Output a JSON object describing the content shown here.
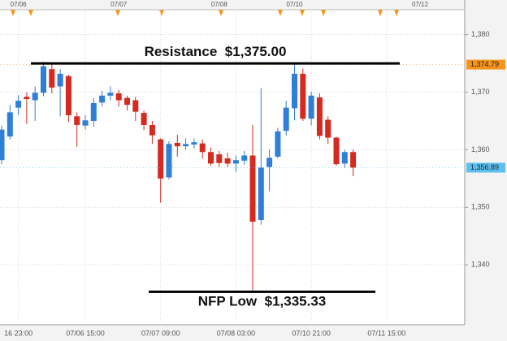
{
  "chart_data": {
    "type": "candlestick",
    "categories": [
      null,
      null,
      "16 23:00",
      null,
      null,
      null,
      null,
      null,
      null,
      null,
      "07/06 15:00",
      null,
      null,
      null,
      null,
      null,
      null,
      null,
      null,
      "07/07 09:00",
      null,
      null,
      null,
      null,
      null,
      null,
      null,
      null,
      "07/08 03:00",
      null,
      null,
      null,
      null,
      null,
      null,
      null,
      null,
      "07/10 21:00",
      null,
      null,
      null,
      null,
      null,
      null,
      null,
      null,
      "07/11 15:00",
      null,
      null,
      null,
      null,
      null,
      null,
      null,
      null,
      null
    ],
    "top_categories": [
      null,
      null,
      "07/06",
      null,
      null,
      null,
      null,
      null,
      null,
      null,
      null,
      null,
      null,
      null,
      "07/07",
      null,
      null,
      null,
      null,
      null,
      null,
      null,
      null,
      null,
      null,
      null,
      "07/08",
      null,
      null,
      null,
      null,
      null,
      null,
      null,
      null,
      "07/10",
      null,
      null,
      null,
      null,
      null,
      null,
      null,
      null,
      null,
      null,
      null,
      null,
      null,
      null,
      "07/12",
      null,
      null,
      null,
      null,
      null
    ],
    "open": [
      1358.2,
      1362.3,
      1367.3,
      1369.2,
      1368.6,
      1369.9,
      1374,
      1371,
      1372.8,
      1365.8,
      1364.2,
      1365,
      1368.2,
      1369.4,
      1369.8,
      1369,
      1368.6,
      1366.4,
      1364.3,
      1361.8,
      1355.2,
      1361.2,
      1360.6,
      1360.9,
      1361.1,
      1359.6,
      1359.2,
      1358.5,
      1357.6,
      1358.1,
      1359,
      1347.8,
      1357,
      1358.8,
      1363.3,
      1367.2,
      1373.2,
      1365.4,
      1369.1,
      1365.2,
      1362.1,
      1357.6,
      1359.6,
      null,
      null,
      null,
      null,
      null,
      null,
      null,
      null,
      null,
      null,
      null,
      null,
      null
    ],
    "high": [
      1364.2,
      1367.8,
      1369.5,
      1370,
      1371,
      1375.3,
      1374.8,
      1374,
      1373,
      1366.5,
      1366,
      1369,
      1370.2,
      1371,
      1370.4,
      1369.4,
      1369.2,
      1366.8,
      1365,
      1362,
      1361.5,
      1362.6,
      1362,
      1362,
      1361.8,
      1360.4,
      1359.8,
      1359.5,
      1359,
      1359.8,
      1364.3,
      1370.7,
      1360,
      1363.8,
      1368.5,
      1375.1,
      1374.1,
      1370.1,
      1369.8,
      1365.8,
      1362.3,
      1360,
      1360,
      null,
      null,
      null,
      null,
      null,
      null,
      null,
      null,
      null,
      null,
      null,
      null,
      null
    ],
    "low": [
      1357.5,
      1361.8,
      1366,
      1364.5,
      1365,
      1369.3,
      1369.8,
      1365.8,
      1364.8,
      1360.5,
      1363.5,
      1364,
      1367.5,
      1368.6,
      1367.5,
      1366.8,
      1365,
      1363.4,
      1361,
      1350.8,
      1354.8,
      1358.8,
      1360,
      1360.2,
      1358.5,
      1357.2,
      1357,
      1357,
      1356.1,
      1357.4,
      1335.33,
      1347,
      1352.8,
      1358.5,
      1362.5,
      1365.1,
      1365,
      1364.2,
      1361.8,
      1361,
      1357.2,
      1356.8,
      1355.4,
      null,
      null,
      null,
      null,
      null,
      null,
      null,
      null,
      null,
      null,
      null,
      null,
      null
    ],
    "close": [
      1363.5,
      1366.5,
      1368.5,
      1368.8,
      1369.9,
      1374.5,
      1370.8,
      1373.2,
      1366,
      1364.3,
      1365.1,
      1368.1,
      1369.4,
      1369.9,
      1368.6,
      1367.8,
      1366.6,
      1364.3,
      1362.5,
      1355,
      1361,
      1360.6,
      1361,
      1361.3,
      1359.6,
      1357.6,
      1357.7,
      1357.6,
      1358.2,
      1359,
      1347.5,
      1356.9,
      1358.6,
      1363.2,
      1367.3,
      1373.2,
      1365.4,
      1369.4,
      1362.4,
      1362.1,
      1357.5,
      1359.6,
      1356.89,
      null,
      null,
      null,
      null,
      null,
      null,
      null,
      null,
      null,
      null,
      null,
      null,
      null
    ],
    "up_color": "#2f7ed8",
    "down_color": "#d42a20",
    "ylim": [
      1329.6,
      1384.6
    ],
    "yticks": [
      {
        "value": 1340,
        "label": "1,340"
      },
      {
        "value": 1350,
        "label": "1,350"
      },
      {
        "value": 1360,
        "label": "1,360"
      },
      {
        "value": 1370,
        "label": "1,370"
      },
      {
        "value": 1380,
        "label": "1,380"
      }
    ],
    "grid": true,
    "price_tags": [
      {
        "value": 1374.79,
        "label": "1,374.79",
        "color": "#f7941d"
      },
      {
        "value": 1356.89,
        "label": "1,356.89",
        "color": "#5bc0f0"
      }
    ],
    "annotations": [
      {
        "text": "Resistance",
        "label": "$1,375.00",
        "value": 1375
      },
      {
        "text": "NFP Low",
        "label": "$1,335.33",
        "value": 1335.33
      }
    ]
  }
}
